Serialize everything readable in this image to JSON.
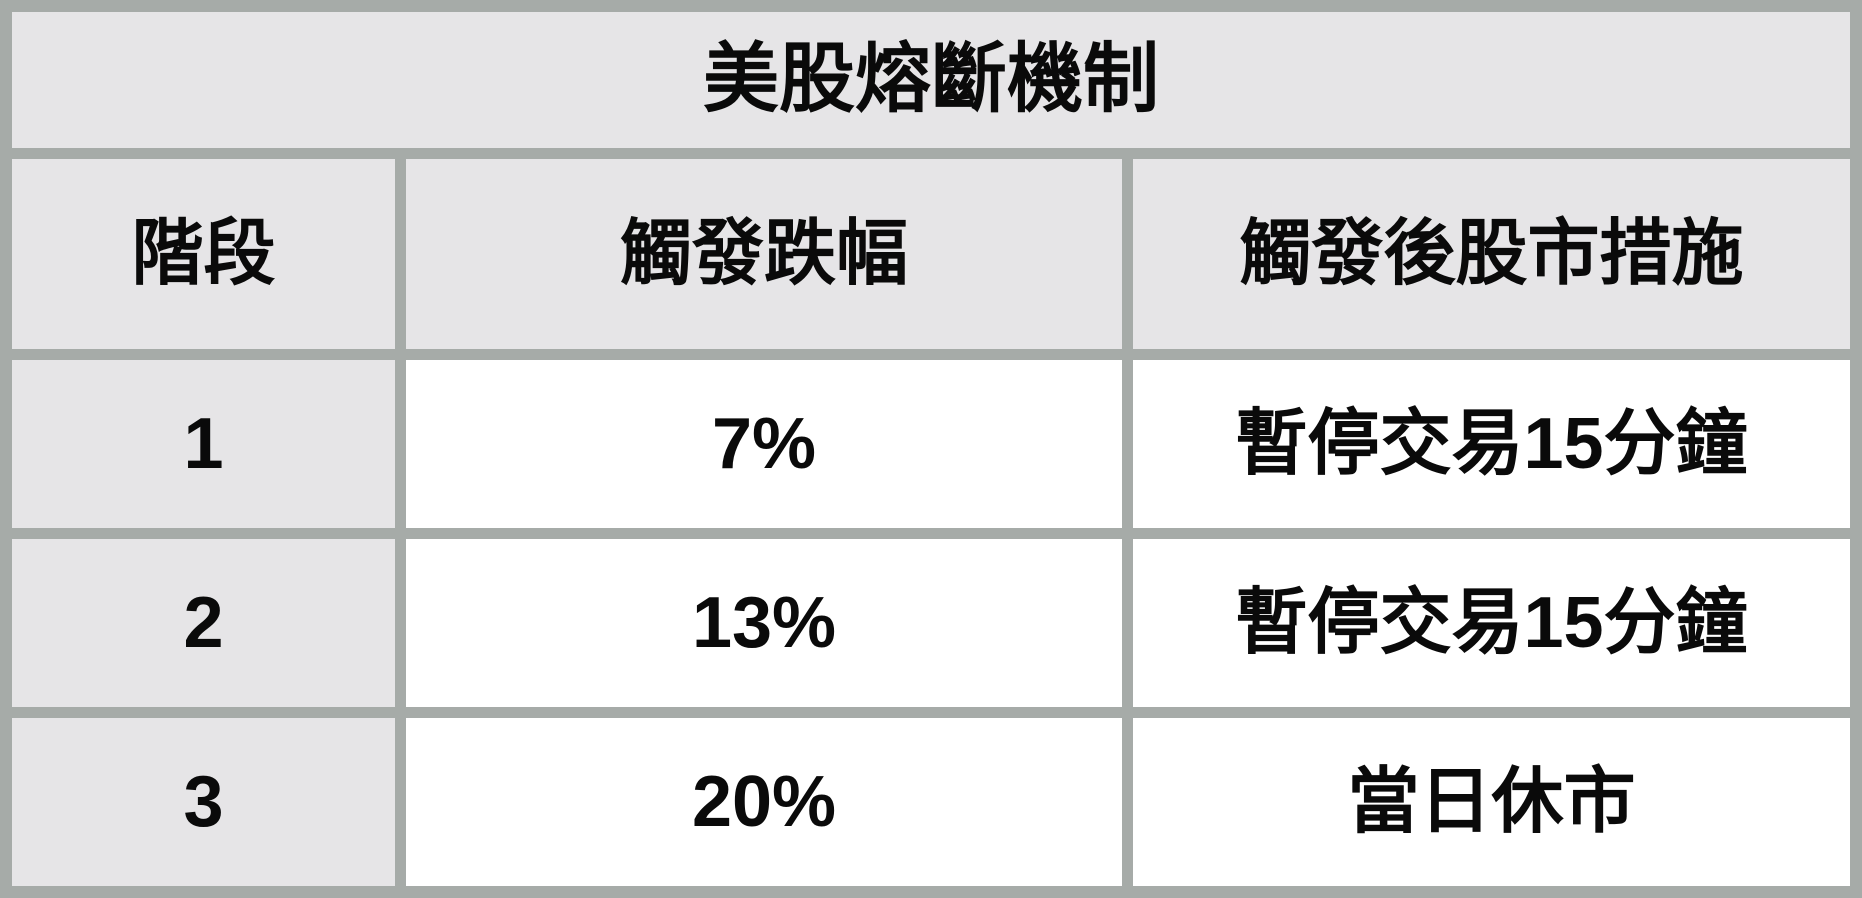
{
  "chart_data": {
    "type": "table",
    "title": "美股熔斷機制",
    "columns": [
      "階段",
      "觸發跌幅",
      "觸發後股市措施"
    ],
    "rows": [
      [
        "1",
        "7%",
        "暫停交易15分鐘"
      ],
      [
        "2",
        "13%",
        "暫停交易15分鐘"
      ],
      [
        "3",
        "20%",
        "當日休市"
      ]
    ],
    "layout": {
      "header_background": "#e6e5e7",
      "body_background": "#ffffff",
      "border_color": "#a6aba8",
      "text_color": "#0a0a0a",
      "grid": "thick gray borders, title row spans all 3 columns, first column shaded like headers"
    }
  }
}
